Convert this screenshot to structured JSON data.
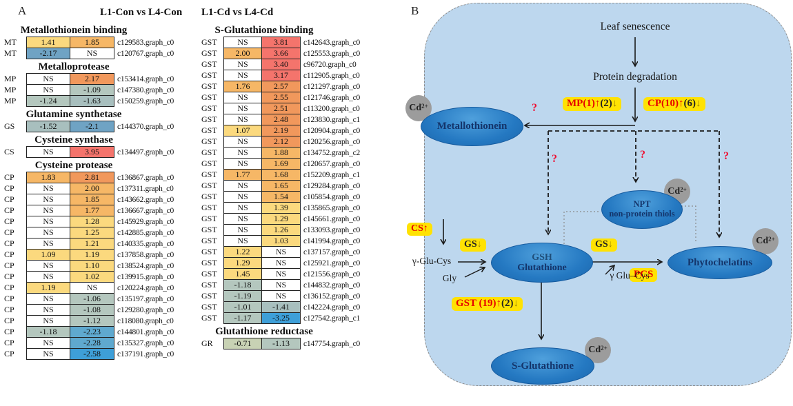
{
  "panel_a": {
    "label": "A",
    "headers": {
      "left": "L1-Con vs L4-Con",
      "right": "L1-Cd vs L4-Cd"
    },
    "ns_text": "NS",
    "color_scale": {
      "ns": "#FFFFFF",
      "positive": [
        {
          "max": 1.5,
          "color": "#FBD97E"
        },
        {
          "max": 2.1,
          "color": "#F6B766"
        },
        {
          "max": 3.0,
          "color": "#F1985C"
        },
        {
          "max": 99,
          "color": "#F4746C"
        }
      ],
      "negative": [
        {
          "min": -1.0,
          "color": "#C8D2B4"
        },
        {
          "min": -1.3,
          "color": "#B4C7BE"
        },
        {
          "min": -1.7,
          "color": "#A8BFBE"
        },
        {
          "min": -2.2,
          "color": "#6FA3C4"
        },
        {
          "min": -2.45,
          "color": "#5FA9CF"
        },
        {
          "min": -99,
          "color": "#3E9FD8"
        }
      ]
    },
    "left_sections": [
      {
        "title": "Metallothionein binding",
        "rows": [
          {
            "gene": "MT",
            "con": "1.41",
            "cd": "1.85",
            "id": "c129583.graph_c0"
          },
          {
            "gene": "MT",
            "con": "-2.17",
            "cd": "NS",
            "id": "c120767.graph_c0"
          }
        ]
      },
      {
        "title": "Metalloprotease",
        "rows": [
          {
            "gene": "MP",
            "con": "NS",
            "cd": "2.17",
            "id": "c153414.graph_c0"
          },
          {
            "gene": "MP",
            "con": "NS",
            "cd": "-1.09",
            "id": "c147380.graph_c0"
          },
          {
            "gene": "MP",
            "con": "-1.24",
            "cd": "-1.63",
            "id": "c150259.graph_c0"
          }
        ]
      },
      {
        "title": "Glutamine synthetase",
        "rows": [
          {
            "gene": "GS",
            "con": "-1.52",
            "cd": "-2.1",
            "id": "c144370.graph_c0"
          }
        ]
      },
      {
        "title": "Cysteine synthase",
        "rows": [
          {
            "gene": "CS",
            "con": "NS",
            "cd": "3.95",
            "id": "c134497.graph_c0"
          }
        ]
      },
      {
        "title": "Cysteine protease",
        "rows": [
          {
            "gene": "CP",
            "con": "1.83",
            "cd": "2.81",
            "id": "c136867.graph_c0"
          },
          {
            "gene": "CP",
            "con": "NS",
            "cd": "2.00",
            "id": "c137311.graph_c0"
          },
          {
            "gene": "CP",
            "con": "NS",
            "cd": "1.85",
            "id": "c143662.graph_c0"
          },
          {
            "gene": "CP",
            "con": "NS",
            "cd": "1.77",
            "id": "c136667.graph_c0"
          },
          {
            "gene": "CP",
            "con": "NS",
            "cd": "1.28",
            "id": "c145929.graph_c0"
          },
          {
            "gene": "CP",
            "con": "NS",
            "cd": "1.25",
            "id": "c142885.graph_c0"
          },
          {
            "gene": "CP",
            "con": "NS",
            "cd": "1.21",
            "id": "c140335.graph_c0"
          },
          {
            "gene": "CP",
            "con": "1.09",
            "cd": "1.19",
            "id": "c137858.graph_c0"
          },
          {
            "gene": "CP",
            "con": "NS",
            "cd": "1.10",
            "id": "c138524.graph_c0"
          },
          {
            "gene": "CP",
            "con": "NS",
            "cd": "1.02",
            "id": "c139915.graph_c0"
          },
          {
            "gene": "CP",
            "con": "1.19",
            "cd": "NS",
            "id": "c120224.graph_c0"
          },
          {
            "gene": "CP",
            "con": "NS",
            "cd": "-1.06",
            "id": "c135197.graph_c0"
          },
          {
            "gene": "CP",
            "con": "NS",
            "cd": "-1.08",
            "id": "c129280.graph_c0"
          },
          {
            "gene": "CP",
            "con": "NS",
            "cd": "-1.12",
            "id": "c118080.graph_c0"
          },
          {
            "gene": "CP",
            "con": "-1.18",
            "cd": "-2.23",
            "id": "c144801.graph_c0"
          },
          {
            "gene": "CP",
            "con": "NS",
            "cd": "-2.28",
            "id": "c135327.graph_c0"
          },
          {
            "gene": "CP",
            "con": "NS",
            "cd": "-2.58",
            "id": "c137191.graph_c0"
          }
        ]
      }
    ],
    "right_sections": [
      {
        "title": "S-Glutathione binding",
        "rows": [
          {
            "gene": "GST",
            "con": "NS",
            "cd": "3.81",
            "id": "c142643.graph_c0"
          },
          {
            "gene": "GST",
            "con": "2.00",
            "cd": "3.66",
            "id": "c125553.graph_c0"
          },
          {
            "gene": "GST",
            "con": "NS",
            "cd": "3.40",
            "id": "c96720.graph_c0"
          },
          {
            "gene": "GST",
            "con": "NS",
            "cd": "3.17",
            "id": "c112905.graph_c0"
          },
          {
            "gene": "GST",
            "con": "1.76",
            "cd": "2.57",
            "id": "c121297.graph_c0"
          },
          {
            "gene": "GST",
            "con": "NS",
            "cd": "2.55",
            "id": "c121746.graph_c0"
          },
          {
            "gene": "GST",
            "con": "NS",
            "cd": "2.51",
            "id": "c113200.graph_c0"
          },
          {
            "gene": "GST",
            "con": "NS",
            "cd": "2.48",
            "id": "c123830.graph_c1"
          },
          {
            "gene": "GST",
            "con": "1.07",
            "cd": "2.19",
            "id": "c120904.graph_c0"
          },
          {
            "gene": "GST",
            "con": "NS",
            "cd": "2.12",
            "id": "c120256.graph_c0"
          },
          {
            "gene": "GST",
            "con": "NS",
            "cd": "1.88",
            "id": "c134752.graph_c2"
          },
          {
            "gene": "GST",
            "con": "NS",
            "cd": "1.69",
            "id": "c120657.graph_c0"
          },
          {
            "gene": "GST",
            "con": "1.77",
            "cd": "1.68",
            "id": "c152209.graph_c1"
          },
          {
            "gene": "GST",
            "con": "NS",
            "cd": "1.65",
            "id": "c129284.graph_c0"
          },
          {
            "gene": "GST",
            "con": "NS",
            "cd": "1.54",
            "id": "c105854.graph_c0"
          },
          {
            "gene": "GST",
            "con": "NS",
            "cd": "1.39",
            "id": "c135865.graph_c0"
          },
          {
            "gene": "GST",
            "con": "NS",
            "cd": "1.29",
            "id": "c145661.graph_c0"
          },
          {
            "gene": "GST",
            "con": "NS",
            "cd": "1.26",
            "id": "c133093.graph_c0"
          },
          {
            "gene": "GST",
            "con": "NS",
            "cd": "1.03",
            "id": "c141994.graph_c0"
          },
          {
            "gene": "GST",
            "con": "1.22",
            "cd": "NS",
            "id": "c137157.graph_c0"
          },
          {
            "gene": "GST",
            "con": "1.29",
            "cd": "NS",
            "id": "c125921.graph_c0"
          },
          {
            "gene": "GST",
            "con": "1.45",
            "cd": "NS",
            "id": "c121556.graph_c0"
          },
          {
            "gene": "GST",
            "con": "-1.18",
            "cd": "NS",
            "id": "c144832.graph_c0"
          },
          {
            "gene": "GST",
            "con": "-1.19",
            "cd": "NS",
            "id": "c136152.graph_c0"
          },
          {
            "gene": "GST",
            "con": "-1.01",
            "cd": "-1.41",
            "id": "c142224.graph_c0"
          },
          {
            "gene": "GST",
            "con": "-1.17",
            "cd": "-3.25",
            "id": "c127542.graph_c1"
          }
        ]
      },
      {
        "title": "Glutathione reductase",
        "rows": [
          {
            "gene": "GR",
            "con": "-0.71",
            "cd": "-1.13",
            "id": "c147754.graph_c0"
          }
        ]
      }
    ]
  },
  "panel_b": {
    "label": "B",
    "cell_fill": "#BDD7EE",
    "flow": {
      "leaf": "Leaf senescence",
      "protein": "Protein degradation"
    },
    "enzyme_boxes": {
      "mp": {
        "red": "MP(1)",
        "up": "↑",
        "black": "(2)",
        "down": "↓"
      },
      "cp": {
        "red": "CP(10)",
        "up": "↑",
        "black": "(6)",
        "down": "↓"
      },
      "cs": {
        "red": "CS",
        "up": "↑"
      },
      "gs_left": {
        "black": "GS",
        "down": "↓"
      },
      "gs_right": {
        "black": "GS",
        "down": "↓"
      },
      "gst": {
        "red": "GST (19)",
        "up": "↑",
        "black": "(2)",
        "down": "↓"
      },
      "pcs": {
        "red": "PCS"
      }
    },
    "nodes": {
      "metallothionein": "Metallothionein",
      "npt_line1": "NPT",
      "npt_line2": "non-protein thiols",
      "gsh_line1": "GSH",
      "gsh_line2": "Glutathione",
      "phytochelatins": "Phytochelatins",
      "s_glutathione": "S-Glutathione"
    },
    "small_labels": {
      "gamma_glu_cys_left": "γ-Glu-Cys",
      "gly": "Gly",
      "gamma_glu_cys_right": "γ Glu–Cys",
      "question": "?"
    },
    "cd_ion": {
      "base": "Cd",
      "sup": "2+"
    }
  }
}
